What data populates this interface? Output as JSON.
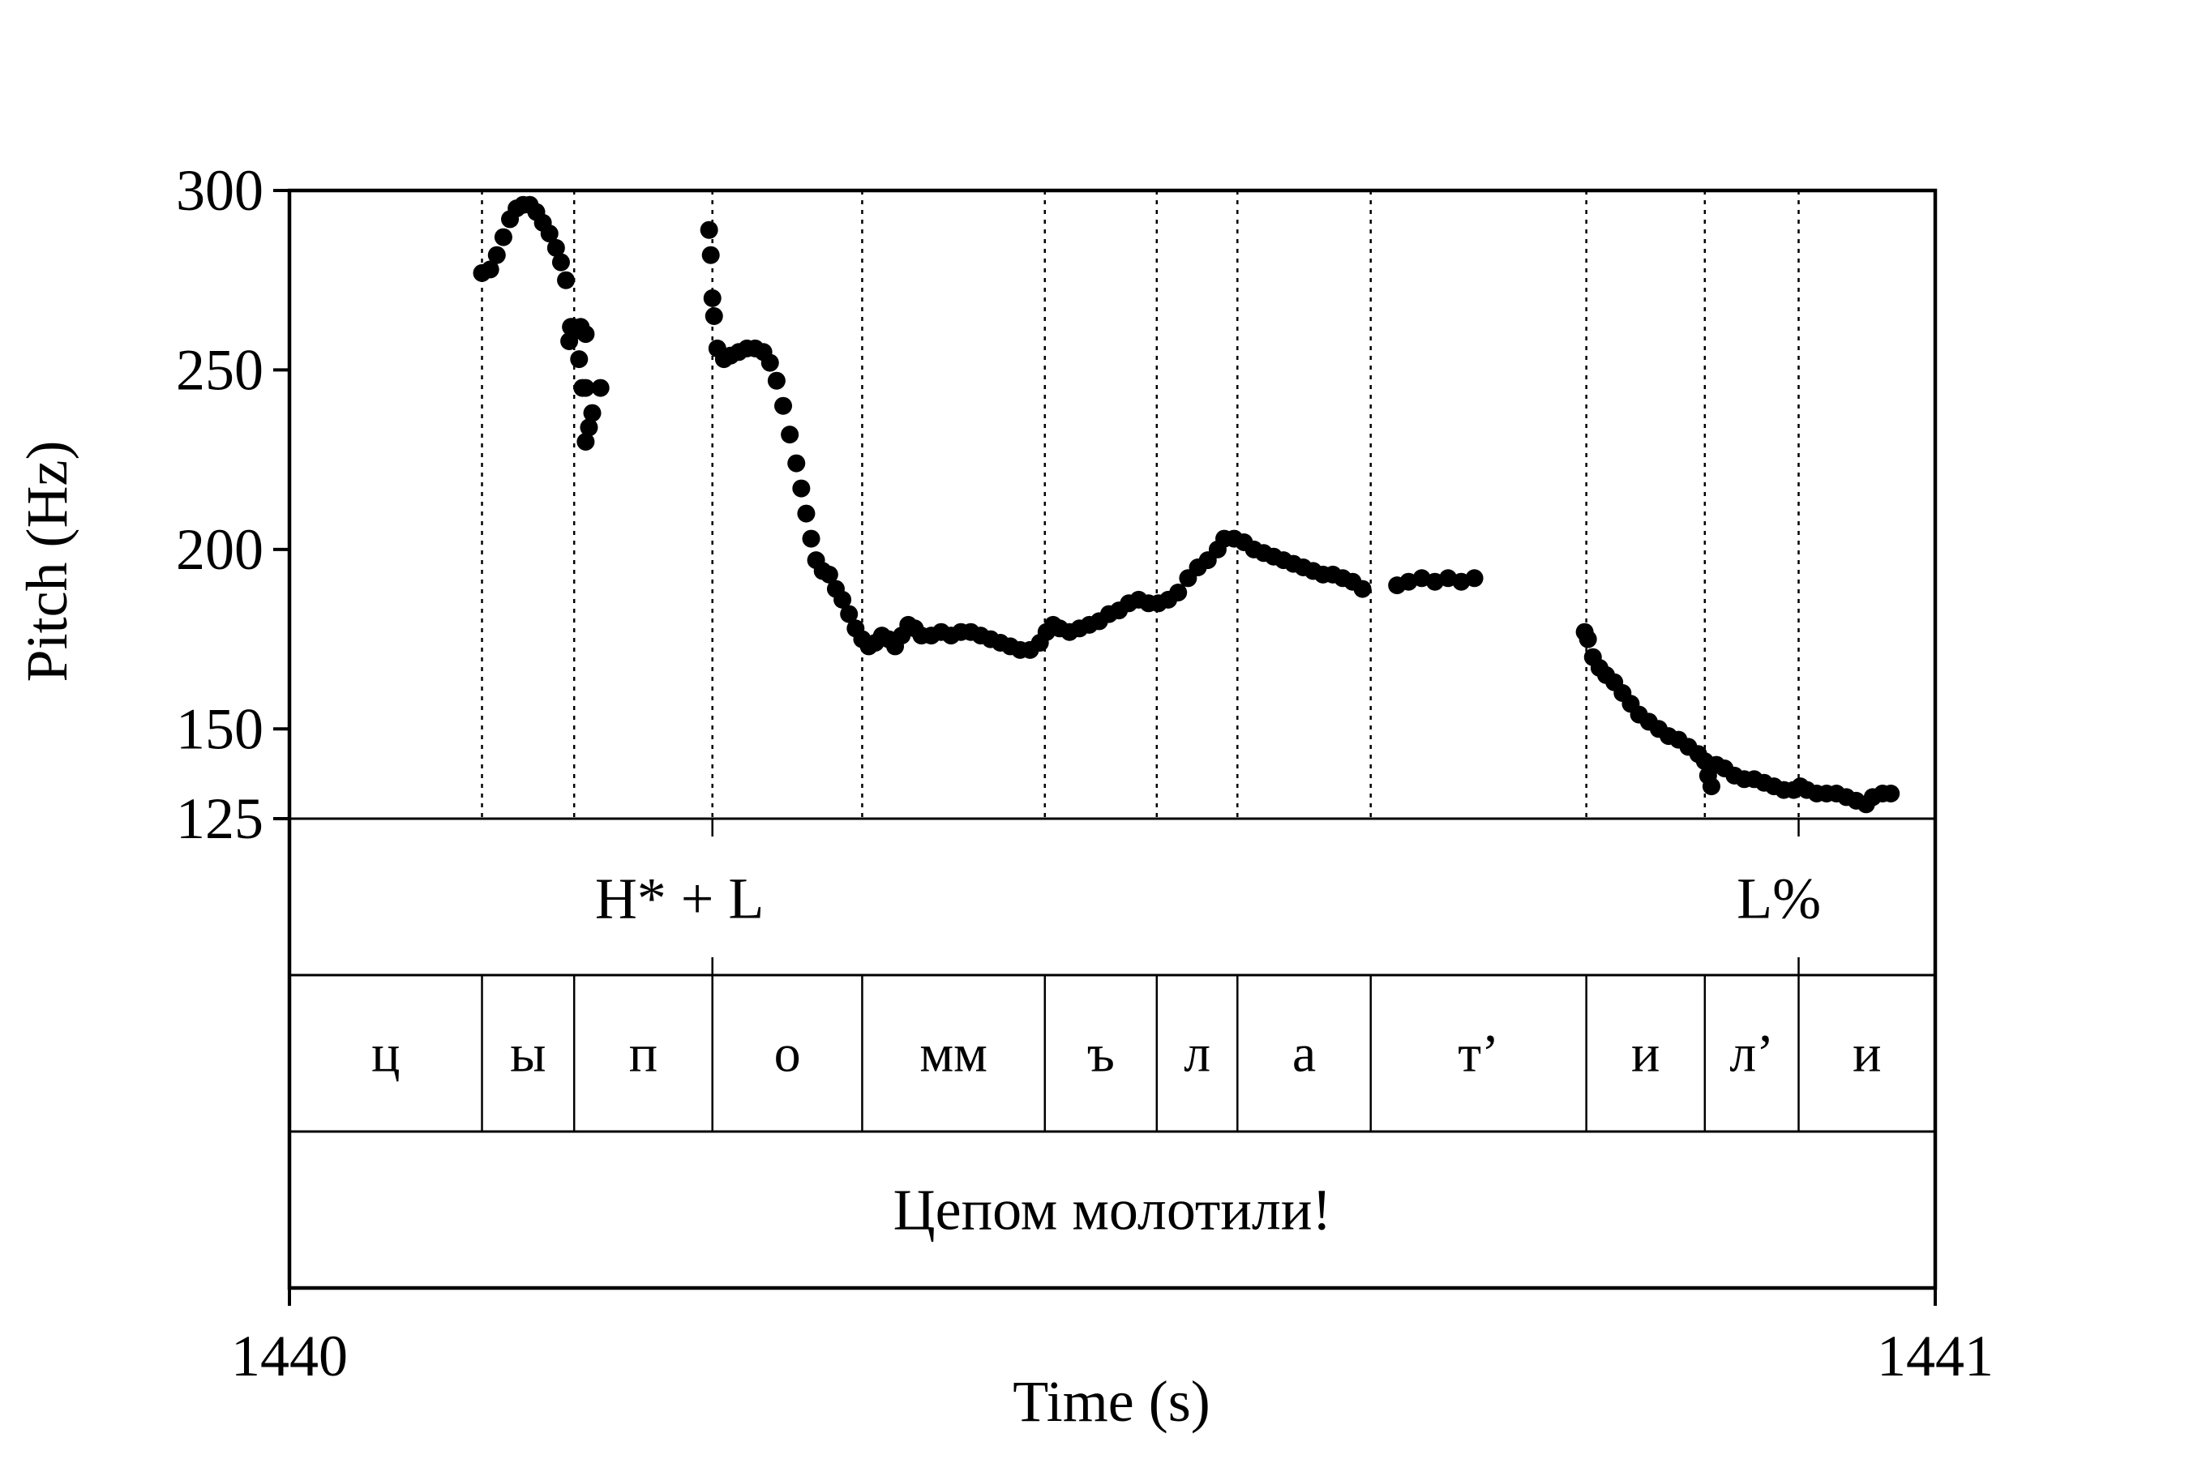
{
  "chart_data": {
    "type": "scatter",
    "xlabel": "Time (s)",
    "ylabel": "Pitch (Hz)",
    "xlim": [
      1440,
      1441
    ],
    "ylim": [
      125,
      300
    ],
    "x_ticks": [
      "1440",
      "1441"
    ],
    "y_ticks": [
      {
        "value": 125,
        "label": "125"
      },
      {
        "value": 150,
        "label": "150"
      },
      {
        "value": 200,
        "label": "200"
      },
      {
        "value": 250,
        "label": "250"
      },
      {
        "value": 300,
        "label": "300"
      }
    ],
    "series": [
      {
        "values": [
          [
            1440.117,
            277
          ],
          [
            1440.122,
            278
          ],
          [
            1440.126,
            282
          ],
          [
            1440.13,
            287
          ],
          [
            1440.134,
            292
          ],
          [
            1440.138,
            295
          ],
          [
            1440.142,
            296
          ],
          [
            1440.146,
            296
          ],
          [
            1440.15,
            294
          ],
          [
            1440.154,
            291
          ],
          [
            1440.158,
            288
          ],
          [
            1440.162,
            284
          ],
          [
            1440.165,
            280
          ],
          [
            1440.168,
            275
          ],
          [
            1440.171,
            262
          ],
          [
            1440.174,
            261
          ],
          [
            1440.177,
            262
          ],
          [
            1440.18,
            260
          ],
          [
            1440.172,
            262
          ],
          [
            1440.17,
            258
          ],
          [
            1440.176,
            253
          ],
          [
            1440.18,
            245
          ],
          [
            1440.184,
            238
          ],
          [
            1440.178,
            245
          ],
          [
            1440.182,
            234
          ],
          [
            1440.18,
            230
          ],
          [
            1440.189,
            245
          ],
          [
            1440.255,
            289
          ],
          [
            1440.256,
            282
          ],
          [
            1440.257,
            270
          ],
          [
            1440.258,
            265
          ],
          [
            1440.26,
            256
          ],
          [
            1440.264,
            253
          ],
          [
            1440.268,
            254
          ],
          [
            1440.273,
            255
          ],
          [
            1440.278,
            256
          ],
          [
            1440.283,
            256
          ],
          [
            1440.288,
            255
          ],
          [
            1440.292,
            252
          ],
          [
            1440.296,
            247
          ],
          [
            1440.3,
            240
          ],
          [
            1440.304,
            232
          ],
          [
            1440.308,
            224
          ],
          [
            1440.311,
            217
          ],
          [
            1440.314,
            210
          ],
          [
            1440.317,
            203
          ],
          [
            1440.32,
            197
          ],
          [
            1440.324,
            194
          ],
          [
            1440.328,
            193
          ],
          [
            1440.332,
            189
          ],
          [
            1440.336,
            186
          ],
          [
            1440.34,
            182
          ],
          [
            1440.344,
            178
          ],
          [
            1440.348,
            175
          ],
          [
            1440.352,
            173
          ],
          [
            1440.356,
            174
          ],
          [
            1440.36,
            176
          ],
          [
            1440.364,
            175
          ],
          [
            1440.368,
            173
          ],
          [
            1440.372,
            176
          ],
          [
            1440.376,
            179
          ],
          [
            1440.38,
            178
          ],
          [
            1440.384,
            176
          ],
          [
            1440.39,
            176
          ],
          [
            1440.396,
            177
          ],
          [
            1440.402,
            176
          ],
          [
            1440.408,
            177
          ],
          [
            1440.414,
            177
          ],
          [
            1440.42,
            176
          ],
          [
            1440.426,
            175
          ],
          [
            1440.432,
            174
          ],
          [
            1440.438,
            173
          ],
          [
            1440.444,
            172
          ],
          [
            1440.45,
            172
          ],
          [
            1440.456,
            174
          ],
          [
            1440.46,
            177
          ],
          [
            1440.464,
            179
          ],
          [
            1440.468,
            178
          ],
          [
            1440.474,
            177
          ],
          [
            1440.48,
            178
          ],
          [
            1440.486,
            179
          ],
          [
            1440.492,
            180
          ],
          [
            1440.498,
            182
          ],
          [
            1440.504,
            183
          ],
          [
            1440.51,
            185
          ],
          [
            1440.516,
            186
          ],
          [
            1440.522,
            185
          ],
          [
            1440.528,
            185
          ],
          [
            1440.534,
            186
          ],
          [
            1440.54,
            188
          ],
          [
            1440.546,
            192
          ],
          [
            1440.552,
            195
          ],
          [
            1440.558,
            197
          ],
          [
            1440.564,
            200
          ],
          [
            1440.568,
            203
          ],
          [
            1440.574,
            203
          ],
          [
            1440.58,
            202
          ],
          [
            1440.586,
            200
          ],
          [
            1440.592,
            199
          ],
          [
            1440.598,
            198
          ],
          [
            1440.604,
            197
          ],
          [
            1440.61,
            196
          ],
          [
            1440.616,
            195
          ],
          [
            1440.622,
            194
          ],
          [
            1440.628,
            193
          ],
          [
            1440.634,
            193
          ],
          [
            1440.64,
            192
          ],
          [
            1440.646,
            191
          ],
          [
            1440.652,
            189
          ],
          [
            1440.673,
            190
          ],
          [
            1440.68,
            191
          ],
          [
            1440.688,
            192
          ],
          [
            1440.696,
            191
          ],
          [
            1440.704,
            192
          ],
          [
            1440.712,
            191
          ],
          [
            1440.72,
            192
          ],
          [
            1440.787,
            177
          ],
          [
            1440.789,
            175
          ],
          [
            1440.792,
            170
          ],
          [
            1440.796,
            167
          ],
          [
            1440.8,
            165
          ],
          [
            1440.805,
            163
          ],
          [
            1440.81,
            160
          ],
          [
            1440.815,
            157
          ],
          [
            1440.82,
            154
          ],
          [
            1440.826,
            152
          ],
          [
            1440.832,
            150
          ],
          [
            1440.838,
            148
          ],
          [
            1440.844,
            147
          ],
          [
            1440.85,
            145
          ],
          [
            1440.856,
            143
          ],
          [
            1440.86,
            141
          ],
          [
            1440.862,
            137
          ],
          [
            1440.864,
            134
          ],
          [
            1440.867,
            140
          ],
          [
            1440.872,
            139
          ],
          [
            1440.878,
            137
          ],
          [
            1440.884,
            136
          ],
          [
            1440.89,
            136
          ],
          [
            1440.896,
            135
          ],
          [
            1440.902,
            134
          ],
          [
            1440.908,
            133
          ],
          [
            1440.914,
            133
          ],
          [
            1440.918,
            134
          ],
          [
            1440.922,
            133
          ],
          [
            1440.928,
            132
          ],
          [
            1440.934,
            132
          ],
          [
            1440.94,
            132
          ],
          [
            1440.946,
            131
          ],
          [
            1440.952,
            130
          ],
          [
            1440.958,
            129
          ],
          [
            1440.962,
            131
          ],
          [
            1440.968,
            132
          ],
          [
            1440.973,
            132
          ]
        ]
      }
    ],
    "boundaries": [
      1440.117,
      1440.173,
      1440.257,
      1440.348,
      1440.459,
      1440.527,
      1440.576,
      1440.657,
      1440.788,
      1440.86,
      1440.917
    ],
    "tones": [
      {
        "time": 1440.257,
        "label": "H* + L",
        "align": "middle",
        "offset_s": -0.02
      },
      {
        "time": 1440.917,
        "label": "L%",
        "align": "middle",
        "offset_s": -0.012
      }
    ],
    "segments": [
      "ц",
      "ы",
      "п",
      "о",
      "мм",
      "ъ",
      "л",
      "а",
      "т’",
      "и",
      "л’",
      "и"
    ],
    "sentence": "Цепом молотили!"
  }
}
